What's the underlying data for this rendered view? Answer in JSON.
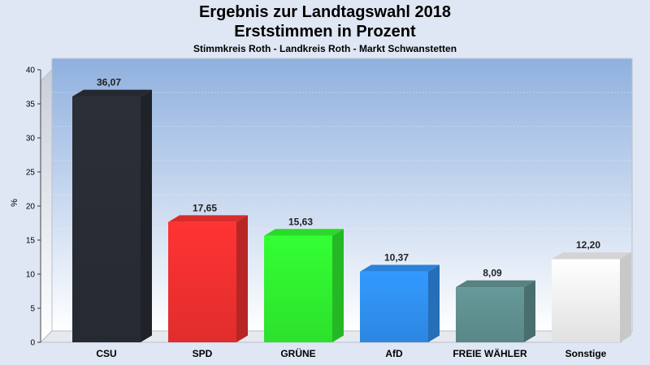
{
  "header": {
    "title_line1": "Ergebnis zur Landtagswahl 2018",
    "title_line2": "Erststimmen in Prozent",
    "subtitle": "Stimmkreis Roth - Landkreis Roth - Markt Schwanstetten"
  },
  "chart_data": {
    "type": "bar",
    "title": "Ergebnis zur Landtagswahl 2018 — Erststimmen in Prozent",
    "subtitle": "Stimmkreis Roth - Landkreis Roth - Markt Schwanstetten",
    "xlabel": "",
    "ylabel": "%",
    "ylim": [
      0,
      40
    ],
    "yticks": [
      0,
      5,
      10,
      15,
      20,
      25,
      30,
      35,
      40
    ],
    "grid": true,
    "categories": [
      "CSU",
      "SPD",
      "GRÜNE",
      "AfD",
      "FREIE WÄHLER",
      "Sonstige"
    ],
    "values": [
      36.07,
      17.65,
      15.63,
      10.37,
      8.09,
      12.2
    ],
    "value_labels": [
      "36,07",
      "17,65",
      "15,63",
      "10,37",
      "8,09",
      "12,20"
    ],
    "colors": [
      "#2b2f38",
      "#ff3333",
      "#33ff33",
      "#3399ff",
      "#669999",
      "#ffffff"
    ]
  }
}
